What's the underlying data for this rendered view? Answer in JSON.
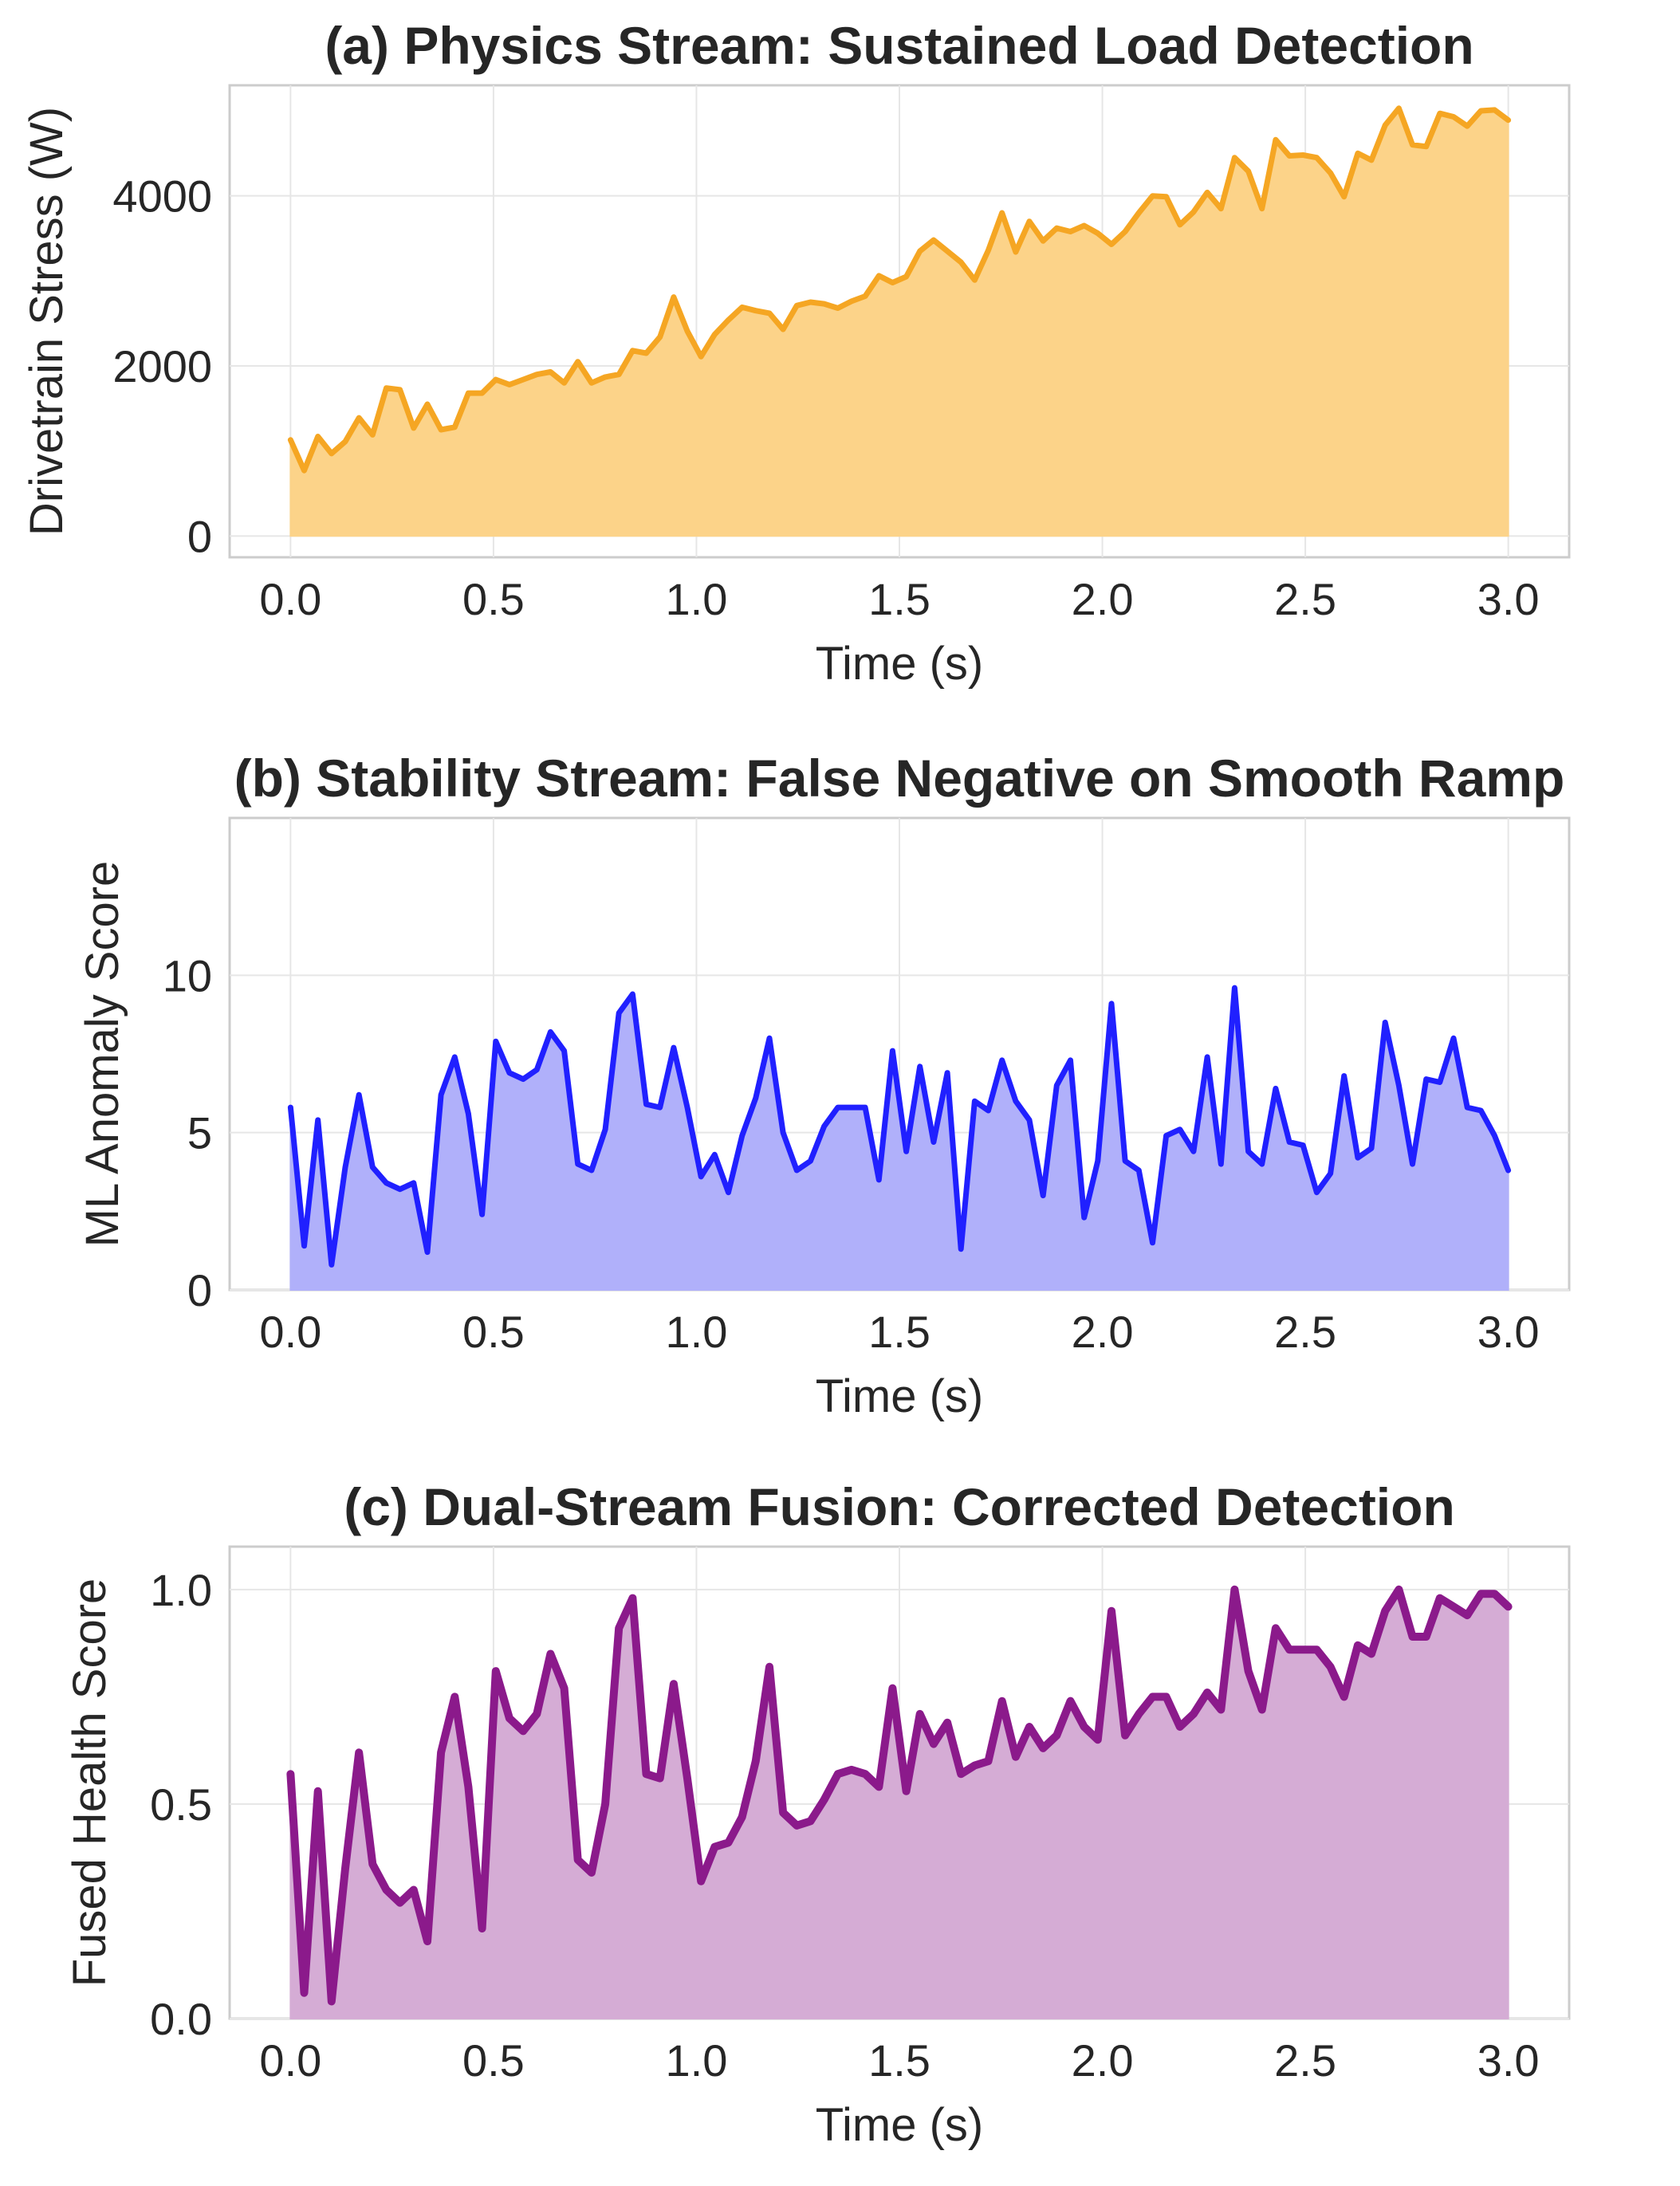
{
  "chart_data": [
    {
      "type": "area",
      "title": "(a) Physics Stream: Sustained Load Detection",
      "xlabel": "Time (s)",
      "ylabel": "Drivetrain Stress (W)",
      "xlim": [
        -0.15,
        3.15
      ],
      "ylim": [
        -250,
        5300
      ],
      "xticks": [
        0,
        0.5,
        1,
        1.5,
        2,
        2.5,
        3
      ],
      "xtick_labels": [
        "0.0",
        "0.5",
        "1.0",
        "1.5",
        "2.0",
        "2.5",
        "3.0"
      ],
      "yticks": [
        0,
        2000,
        4000
      ],
      "ytick_labels": [
        "0",
        "2000",
        "4000"
      ],
      "grid": true,
      "line_color": "#f5a623",
      "fill_color": "#fcd389",
      "x_start": 0,
      "x_end": 3.0,
      "values": [
        1130,
        770,
        1170,
        970,
        1110,
        1390,
        1190,
        1740,
        1720,
        1270,
        1550,
        1250,
        1280,
        1680,
        1680,
        1840,
        1780,
        1840,
        1900,
        1930,
        1800,
        2050,
        1800,
        1870,
        1900,
        2180,
        2150,
        2340,
        2810,
        2410,
        2110,
        2370,
        2540,
        2690,
        2650,
        2620,
        2430,
        2710,
        2750,
        2730,
        2680,
        2760,
        2820,
        3060,
        2980,
        3050,
        3350,
        3480,
        3350,
        3220,
        3010,
        3360,
        3800,
        3340,
        3700,
        3470,
        3620,
        3580,
        3650,
        3560,
        3430,
        3580,
        3800,
        4000,
        3990,
        3660,
        3810,
        4040,
        3850,
        4450,
        4290,
        3850,
        4660,
        4470,
        4480,
        4450,
        4270,
        3990,
        4500,
        4420,
        4830,
        5030,
        4600,
        4580,
        4970,
        4930,
        4820,
        5000,
        5010,
        4890
      ]
    },
    {
      "type": "area",
      "title": "(b) Stability Stream: False Negative on Smooth Ramp",
      "xlabel": "Time (s)",
      "ylabel": "ML Anomaly Score",
      "xlim": [
        -0.15,
        3.15
      ],
      "ylim": [
        0,
        15
      ],
      "xticks": [
        0,
        0.5,
        1,
        1.5,
        2,
        2.5,
        3
      ],
      "xtick_labels": [
        "0.0",
        "0.5",
        "1.0",
        "1.5",
        "2.0",
        "2.5",
        "3.0"
      ],
      "yticks": [
        0,
        5,
        10
      ],
      "ytick_labels": [
        "0",
        "5",
        "10"
      ],
      "grid": true,
      "line_color": "#2020ff",
      "fill_color": "#b0b0fa",
      "x_start": 0,
      "x_end": 3.0,
      "values": [
        5.8,
        1.4,
        5.4,
        0.8,
        3.9,
        6.2,
        3.9,
        3.4,
        3.2,
        3.4,
        1.2,
        6.2,
        7.4,
        5.6,
        2.4,
        7.9,
        6.9,
        6.7,
        7.0,
        8.2,
        7.6,
        4.0,
        3.8,
        5.1,
        8.8,
        9.4,
        5.9,
        5.8,
        7.7,
        5.8,
        3.6,
        4.3,
        3.1,
        4.9,
        6.1,
        8.0,
        5.0,
        3.8,
        4.1,
        5.2,
        5.8,
        5.8,
        5.8,
        3.5,
        7.6,
        4.4,
        7.1,
        4.7,
        6.9,
        1.3,
        6.0,
        5.7,
        7.3,
        6.0,
        5.4,
        3.0,
        6.5,
        7.3,
        2.3,
        4.1,
        9.1,
        4.1,
        3.8,
        1.5,
        4.9,
        5.1,
        4.4,
        7.4,
        4.0,
        9.6,
        4.4,
        4.0,
        6.4,
        4.7,
        4.6,
        3.1,
        3.7,
        6.8,
        4.2,
        4.5,
        8.5,
        6.5,
        4.0,
        6.7,
        6.6,
        8.0,
        5.8,
        5.7,
        4.9,
        3.8
      ]
    },
    {
      "type": "area",
      "title": "(c) Dual-Stream Fusion: Corrected Detection",
      "xlabel": "Time (s)",
      "ylabel": "Fused Health Score",
      "xlim": [
        -0.15,
        3.15
      ],
      "ylim": [
        0,
        1.1
      ],
      "xticks": [
        0,
        0.5,
        1,
        1.5,
        2,
        2.5,
        3
      ],
      "xtick_labels": [
        "0.0",
        "0.5",
        "1.0",
        "1.5",
        "2.0",
        "2.5",
        "3.0"
      ],
      "yticks": [
        0,
        0.5,
        1
      ],
      "ytick_labels": [
        "0.0",
        "0.5",
        "1.0"
      ],
      "grid": true,
      "line_color": "#8b1a8b",
      "fill_color": "#d5acd5",
      "x_start": 0,
      "x_end": 3.0,
      "values": [
        0.57,
        0.06,
        0.53,
        0.04,
        0.35,
        0.62,
        0.36,
        0.3,
        0.27,
        0.3,
        0.18,
        0.62,
        0.75,
        0.54,
        0.21,
        0.81,
        0.7,
        0.67,
        0.71,
        0.85,
        0.77,
        0.37,
        0.34,
        0.5,
        0.91,
        0.98,
        0.57,
        0.56,
        0.78,
        0.56,
        0.32,
        0.4,
        0.41,
        0.47,
        0.6,
        0.82,
        0.48,
        0.45,
        0.46,
        0.51,
        0.57,
        0.58,
        0.57,
        0.54,
        0.77,
        0.53,
        0.71,
        0.64,
        0.69,
        0.57,
        0.59,
        0.6,
        0.74,
        0.61,
        0.68,
        0.63,
        0.66,
        0.74,
        0.68,
        0.65,
        0.95,
        0.66,
        0.71,
        0.75,
        0.75,
        0.68,
        0.71,
        0.76,
        0.72,
        1.0,
        0.81,
        0.72,
        0.91,
        0.86,
        0.86,
        0.86,
        0.82,
        0.75,
        0.87,
        0.85,
        0.95,
        1.0,
        0.89,
        0.89,
        0.98,
        0.96,
        0.94,
        0.99,
        0.99,
        0.96
      ]
    }
  ]
}
